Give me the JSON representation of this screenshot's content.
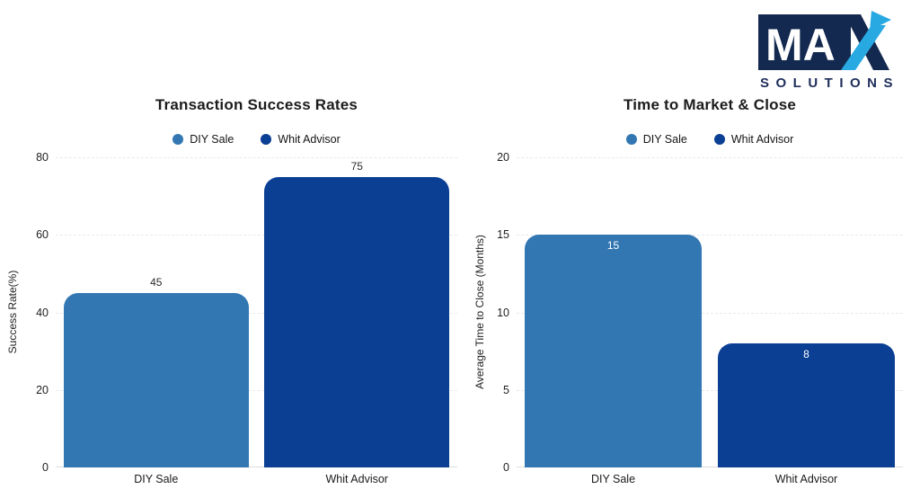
{
  "logo": {
    "ma": "MA",
    "solutions": "SOLUTIONS",
    "navy": "#132950",
    "arrow_blue": "#29a9e1",
    "text_navy": "#1e2d5a"
  },
  "colors": {
    "diy_sale": "#3377b2",
    "whit_advisor": "#0a3f94",
    "gridline": "#e7e9ec",
    "title_text": "#1c1c1c"
  },
  "chart_data": [
    {
      "type": "bar",
      "title": "Transaction Success Rates",
      "xlabel": "",
      "ylabel": "Success Rate(%)",
      "categories": [
        "DIY Sale",
        "Whit Advisor"
      ],
      "values": [
        45,
        75
      ],
      "colors": [
        "#3377b2",
        "#0a3f94"
      ],
      "ylim": [
        0,
        80
      ],
      "yticks": [
        0,
        20,
        40,
        60,
        80
      ],
      "grid": "horizontal-dashed",
      "legend": [
        {
          "label": "DIY Sale",
          "color": "#3377b2"
        },
        {
          "label": "Whit Advisor",
          "color": "#0a3f94"
        }
      ],
      "legend_position": "top-center",
      "value_labels": [
        "45",
        "75"
      ],
      "value_label_position": "outside",
      "value_label_color": "#2b2b2b"
    },
    {
      "type": "bar",
      "title": "Time to Market & Close",
      "xlabel": "",
      "ylabel": "Average Time to Close (Months)",
      "categories": [
        "DIY Sale",
        "Whit Advisor"
      ],
      "values": [
        15,
        8
      ],
      "colors": [
        "#3377b2",
        "#0a3f94"
      ],
      "ylim": [
        0,
        20
      ],
      "yticks": [
        0,
        5,
        10,
        15,
        20
      ],
      "grid": "horizontal-dashed",
      "legend": [
        {
          "label": "DIY Sale",
          "color": "#3377b2"
        },
        {
          "label": "Whit Advisor",
          "color": "#0a3f94"
        }
      ],
      "legend_position": "top-center",
      "value_labels": [
        "15",
        "8"
      ],
      "value_label_position": "inside",
      "value_label_color": "#ffffff"
    }
  ]
}
